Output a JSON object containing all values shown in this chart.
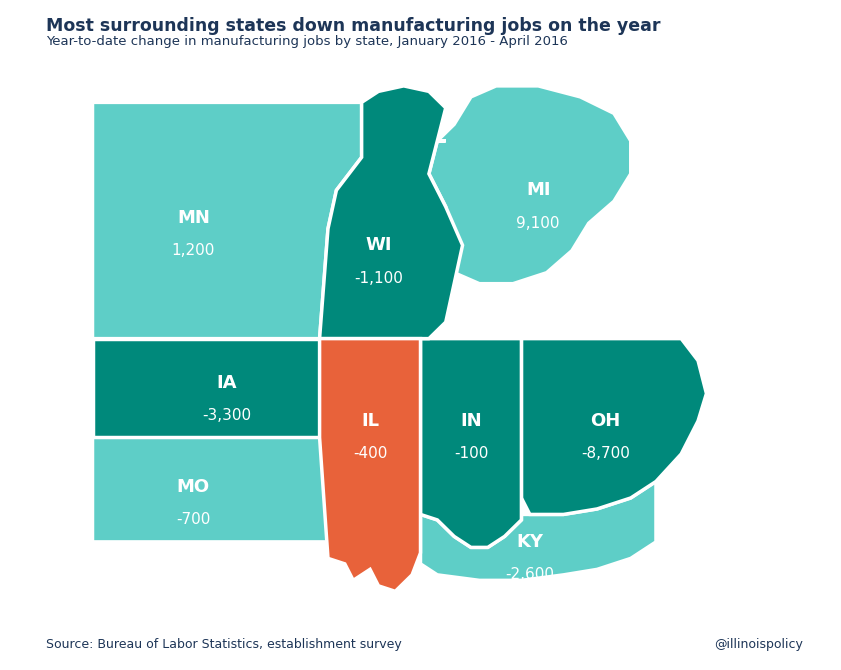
{
  "title": "Most surrounding states down manufacturing jobs on the year",
  "subtitle": "Year-to-date change in manufacturing jobs by state, January 2016 - April 2016",
  "source": "Source: Bureau of Labor Statistics, establishment survey",
  "handle": "@illinoispolicy",
  "title_color": "#1d3557",
  "subtitle_color": "#1d3557",
  "source_color": "#1d3557",
  "bg_color": "#ffffff",
  "states": {
    "MN": {
      "label": "MN",
      "value": "1,200",
      "color": "#5ecec7"
    },
    "WI": {
      "label": "WI",
      "value": "-1,100",
      "color": "#00897b"
    },
    "MI": {
      "label": "MI",
      "value": "9,100",
      "color": "#5ecec7"
    },
    "IA": {
      "label": "IA",
      "value": "-3,300",
      "color": "#00897b"
    },
    "IL": {
      "label": "IL",
      "value": "-400",
      "color": "#e8623a"
    },
    "IN": {
      "label": "IN",
      "value": "-100",
      "color": "#00897b"
    },
    "OH": {
      "label": "OH",
      "value": "-8,700",
      "color": "#00897b"
    },
    "MO": {
      "label": "MO",
      "value": "-700",
      "color": "#5ecec7"
    },
    "KY": {
      "label": "KY",
      "value": "-2,600",
      "color": "#5ecec7"
    }
  }
}
